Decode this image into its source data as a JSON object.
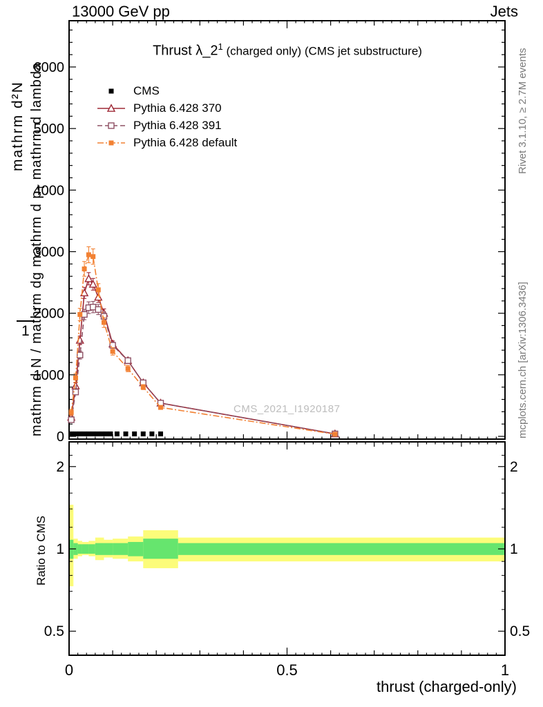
{
  "header": {
    "left": "13000 GeV pp",
    "right": "Jets"
  },
  "main_plot": {
    "title_main": "Thrust λ_2",
    "title_sup": "1",
    "title_rest": " (charged only) (CMS jet substructure)",
    "ylabel_outer": "mathrm d²N",
    "ylabel_frac_one": "1",
    "ylabel_inner_pre": "mathrm d N / mathrm dg mathrm d p",
    "ylabel_inner_sub": "T",
    "ylabel_inner_post": " mathrm d lambda"
  },
  "legend": {
    "items": [
      {
        "label": "CMS"
      },
      {
        "label": "Pythia 6.428 370"
      },
      {
        "label": "Pythia 6.428 391"
      },
      {
        "label": "Pythia 6.428 default"
      }
    ]
  },
  "watermark": "CMS_2021_I1920187",
  "margin_notes": {
    "rivet": "Rivet 3.1.10, ≥ 2.7M events",
    "mcplots": "mcplots.cern.ch [arXiv:1306.3436]"
  },
  "ratio_panel": {
    "ylabel": "Ratio to CMS"
  },
  "xlabel": "thrust (charged-only)",
  "chart_data": [
    {
      "type": "line",
      "panel": "main",
      "title": "Thrust λ_2^1 (charged only) (CMS jet substructure)",
      "xlabel": "thrust (charged-only)",
      "ylabel": "1 / mathrm d N  mathrm d²N / mathrm dg mathrm d p_T mathrm d lambda",
      "xlim": [
        0,
        1
      ],
      "ylim": [
        0,
        6750
      ],
      "grid": false,
      "legend_position": "upper-left",
      "yticks": [
        0,
        1000,
        2000,
        3000,
        4000,
        5000,
        6000
      ],
      "xticks": {
        "values": [
          0,
          0.5,
          1
        ],
        "labels": [
          "0",
          "0.5",
          "1"
        ]
      },
      "series": [
        {
          "name": "CMS",
          "color": "#000000",
          "marker": "filled-square",
          "linestyle": "none",
          "draw": "markers",
          "x": [
            0.005,
            0.015,
            0.025,
            0.035,
            0.045,
            0.055,
            0.065,
            0.075,
            0.085,
            0.095,
            0.11,
            0.13,
            0.15,
            0.17,
            0.19,
            0.21,
            0.61
          ],
          "y": [
            40,
            40,
            40,
            40,
            40,
            40,
            40,
            40,
            40,
            40,
            40,
            40,
            40,
            40,
            40,
            40,
            40
          ]
        },
        {
          "name": "Pythia 6.428 370",
          "color": "#9e2835",
          "marker": "open-triangle",
          "linestyle": "solid",
          "x": [
            0.005,
            0.015,
            0.025,
            0.035,
            0.045,
            0.055,
            0.067,
            0.08,
            0.1,
            0.135,
            0.17,
            0.21,
            0.61
          ],
          "y": [
            310,
            820,
            1560,
            2330,
            2560,
            2470,
            2260,
            2000,
            1500,
            1230,
            870,
            540,
            40
          ],
          "yerr": [
            35,
            50,
            70,
            90,
            100,
            95,
            85,
            70,
            50,
            40,
            30,
            22,
            6
          ]
        },
        {
          "name": "Pythia 6.428 391",
          "color": "#8e5064",
          "marker": "open-square",
          "linestyle": "dashed",
          "x": [
            0.005,
            0.015,
            0.025,
            0.035,
            0.045,
            0.055,
            0.067,
            0.08,
            0.1,
            0.135,
            0.17,
            0.21,
            0.61
          ],
          "y": [
            270,
            720,
            1320,
            1980,
            2090,
            2100,
            2060,
            1950,
            1480,
            1230,
            870,
            540,
            40
          ],
          "yerr": [
            32,
            46,
            65,
            85,
            95,
            92,
            82,
            66,
            48,
            38,
            29,
            21,
            6
          ]
        },
        {
          "name": "Pythia 6.428 default",
          "color": "#f28133",
          "marker": "filled-square",
          "linestyle": "dashdot",
          "x": [
            0.005,
            0.015,
            0.025,
            0.035,
            0.045,
            0.055,
            0.067,
            0.08,
            0.1,
            0.135,
            0.17,
            0.21,
            0.61
          ],
          "y": [
            390,
            950,
            1980,
            2720,
            2950,
            2920,
            2380,
            1850,
            1380,
            1100,
            800,
            470,
            35
          ],
          "yerr": [
            50,
            70,
            100,
            120,
            130,
            125,
            100,
            80,
            60,
            50,
            40,
            30,
            8
          ]
        }
      ]
    },
    {
      "type": "ratio-band",
      "panel": "ratio",
      "ylabel": "Ratio to CMS",
      "yscale": "log",
      "ylim": [
        0.41,
        2.45
      ],
      "yticks": {
        "values": [
          0.5,
          1,
          2
        ],
        "labels": [
          "0.5",
          "1",
          "2"
        ]
      },
      "yticks_minor": [
        0.6,
        0.7,
        0.8,
        0.9,
        1.2,
        1.4,
        1.6,
        1.8,
        2.2
      ],
      "band_colors": {
        "yellow": "#fcfc7a",
        "green": "#66e56e"
      },
      "bands": {
        "edges": [
          0,
          0.01,
          0.02,
          0.03,
          0.045,
          0.06,
          0.08,
          0.1,
          0.135,
          0.17,
          0.25,
          1.0
        ],
        "yellow_lo": [
          0.73,
          0.92,
          0.94,
          0.95,
          0.94,
          0.91,
          0.93,
          0.92,
          0.9,
          0.85,
          0.9
        ],
        "yellow_hi": [
          1.45,
          1.09,
          1.07,
          1.06,
          1.07,
          1.1,
          1.08,
          1.09,
          1.11,
          1.17,
          1.1
        ],
        "green_lo": [
          0.92,
          0.95,
          0.96,
          0.96,
          0.96,
          0.95,
          0.95,
          0.95,
          0.94,
          0.92,
          0.95
        ],
        "green_hi": [
          1.08,
          1.05,
          1.04,
          1.04,
          1.04,
          1.05,
          1.05,
          1.05,
          1.06,
          1.09,
          1.05
        ]
      }
    }
  ]
}
